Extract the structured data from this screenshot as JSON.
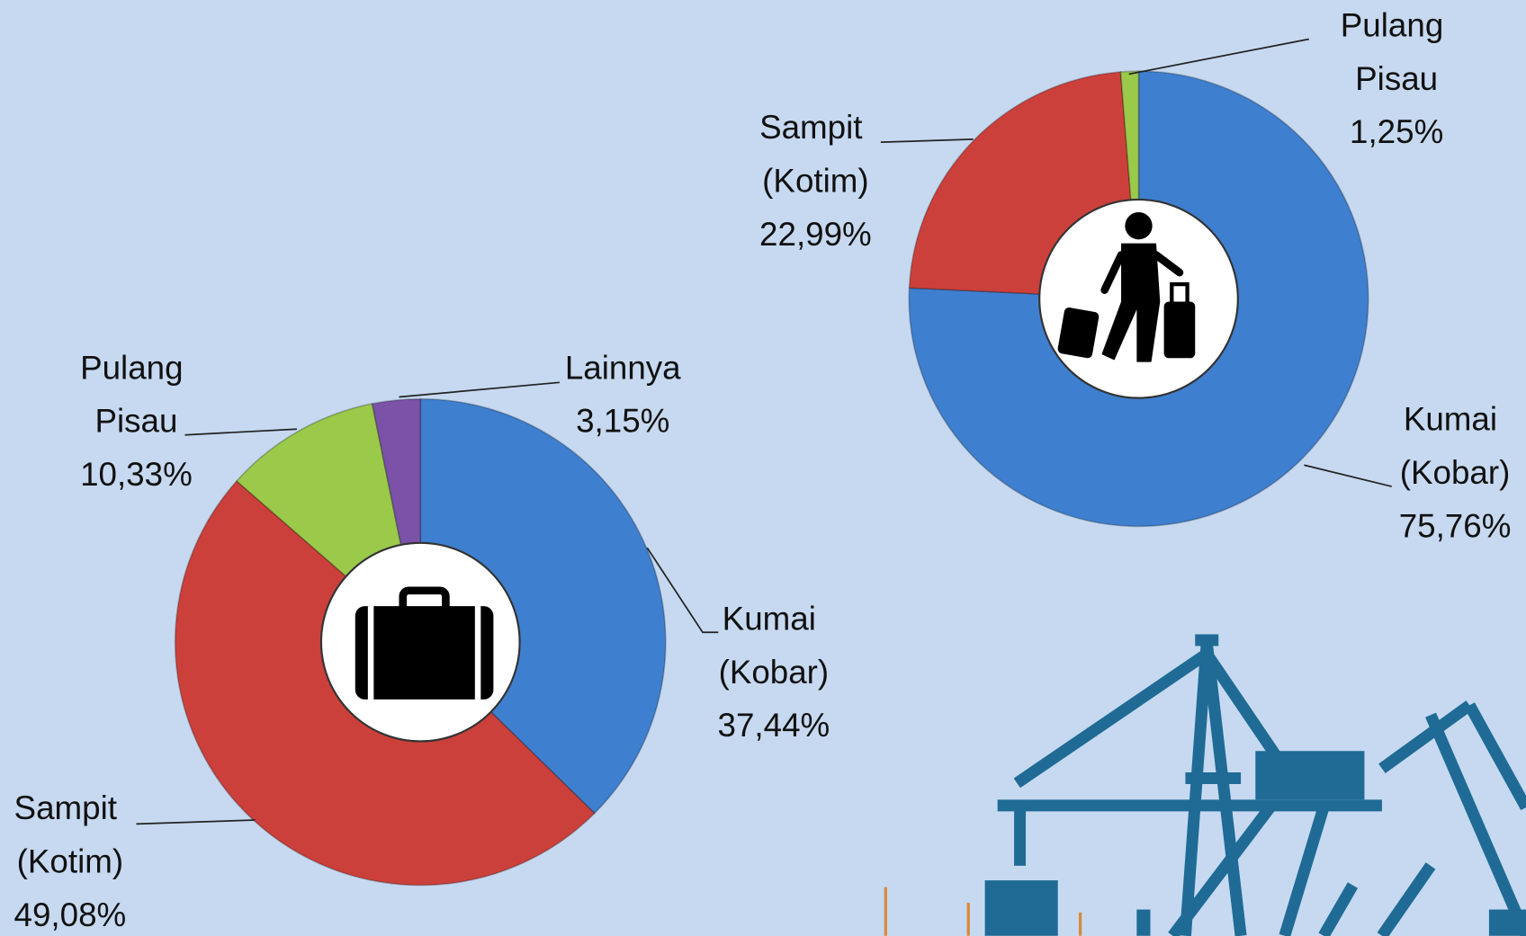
{
  "chart_data": [
    {
      "type": "donut",
      "categories": [
        "Kumai (Kobar)",
        "Sampit (Kotim)",
        "Pulang Pisau",
        "Lainnya"
      ],
      "values": [
        37.44,
        49.08,
        10.33,
        3.15
      ],
      "value_labels": [
        "37,44%",
        "49,08%",
        "10,33%",
        "3,15%"
      ],
      "colors": [
        "#3f7fcf",
        "#cc403b",
        "#9bc94a",
        "#7b52a8"
      ]
    },
    {
      "type": "donut",
      "categories": [
        "Kumai (Kobar)",
        "Sampit (Kotim)",
        "Pulang Pisau"
      ],
      "values": [
        75.76,
        22.99,
        1.25
      ],
      "value_labels": [
        "75,76%",
        "22,99%",
        "1,25%"
      ],
      "colors": [
        "#3f7fcf",
        "#cc403b",
        "#9bc94a"
      ]
    }
  ]
}
